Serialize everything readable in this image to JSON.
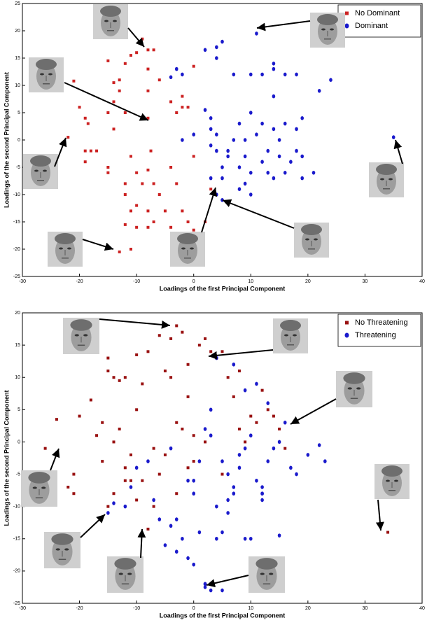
{
  "chart_data": [
    {
      "type": "scatter",
      "x_label": "Loadings of the first Principal Component",
      "y_label": "Loadings of the second Principal Component",
      "xlim": [
        -30,
        40
      ],
      "xticks": [
        -30,
        -20,
        -10,
        0,
        10,
        20,
        30,
        40
      ],
      "ylim": [
        -25,
        25
      ],
      "yticks": [
        -25,
        -20,
        -15,
        -10,
        -5,
        0,
        5,
        10,
        15,
        20,
        25
      ],
      "legend": "top-right",
      "series": [
        {
          "name": "No Dominant",
          "color": "#cc2222",
          "marker": "square",
          "x": [
            -21,
            -20,
            -19,
            -18.5,
            -19,
            -18,
            -17,
            -19,
            -15,
            -14,
            -13,
            -14,
            -15,
            -13,
            -12,
            -12,
            -11,
            -10,
            -9,
            -8,
            -7,
            -8,
            -6,
            -8,
            -8,
            -7.5,
            -8,
            -15,
            -15,
            -11,
            -10,
            -12,
            -12,
            -11,
            -12,
            -10,
            -10,
            -8,
            -7,
            -6,
            -5,
            -3,
            -2,
            -1,
            0,
            -4,
            -3,
            -2,
            -1,
            -4,
            -2,
            0,
            -7,
            -14,
            -13,
            2,
            3,
            -9,
            -4,
            -8,
            0,
            -11,
            -22
          ],
          "values": [
            10.8,
            6,
            4,
            3,
            -2,
            -2,
            -2,
            -4,
            14.5,
            10.5,
            11,
            7,
            5,
            9,
            5,
            14,
            15.5,
            16,
            18.5,
            16.5,
            16.5,
            13,
            11,
            9,
            4,
            -2,
            -5.5,
            -5,
            -6,
            -3,
            -6,
            -8,
            -10,
            -13,
            -15.5,
            -16,
            -12,
            -13,
            -15,
            -10,
            -13,
            -8,
            -13,
            -15,
            -16.5,
            -16,
            5,
            6,
            6,
            7,
            8,
            13.5,
            -8,
            2,
            -20.5,
            -15,
            -9,
            -8,
            -5,
            -16,
            -3,
            -20,
            0.5
          ]
        },
        {
          "name": "Dominant",
          "color": "#1a1acc",
          "marker": "circle",
          "x": [
            -4,
            -3,
            -2,
            2,
            4,
            4,
            5,
            7,
            10,
            12,
            14,
            14,
            11,
            16,
            18,
            22,
            24,
            0,
            2,
            3,
            3,
            4,
            3,
            4,
            6,
            5,
            5,
            3,
            4,
            5,
            8,
            9,
            10,
            9,
            8,
            10,
            12,
            13,
            13,
            14,
            15,
            15,
            16,
            17,
            18,
            19,
            19,
            21,
            11,
            12,
            14,
            16,
            18,
            19,
            8,
            9,
            10,
            14,
            -2,
            6,
            7,
            35
          ],
          "values": [
            11.5,
            13,
            12,
            16.5,
            17,
            15,
            18,
            12,
            12,
            12,
            13,
            14,
            19.5,
            12,
            12,
            9,
            11,
            1,
            5.5,
            4,
            2,
            1,
            -1,
            -2,
            -3,
            -5,
            -7,
            -7,
            -10,
            -11,
            -5,
            -3,
            -6,
            -8,
            -9,
            -10,
            -4,
            -2,
            -6,
            -7,
            0,
            -3,
            -6,
            -4,
            -2,
            -3,
            -7,
            -6,
            1,
            3,
            2,
            3,
            2,
            4,
            3,
            0,
            5,
            8,
            0,
            -2,
            0,
            0.5
          ]
        }
      ]
    },
    {
      "type": "scatter",
      "x_label": "Loadings of the first Principal Component",
      "y_label": "Loadings of the second Principal Component",
      "xlim": [
        -30,
        40
      ],
      "xticks": [
        -30,
        -20,
        -10,
        0,
        10,
        20,
        30,
        40
      ],
      "ylim": [
        -25,
        20
      ],
      "yticks": [
        -25,
        -20,
        -15,
        -10,
        -5,
        0,
        5,
        10,
        15,
        20
      ],
      "legend": "top-right",
      "series": [
        {
          "name": "No Threatening",
          "color": "#991111",
          "marker": "square",
          "x": [
            -24,
            -26,
            -22,
            -21,
            -21,
            -20,
            -18,
            -17,
            -16,
            -15,
            -15,
            -14,
            -13,
            -12,
            -14,
            -16,
            -13,
            -12,
            -11,
            -10,
            -10,
            -9,
            -8,
            -7,
            -6,
            -5,
            -4,
            -4,
            -3,
            -2,
            -1,
            0,
            1,
            2,
            3,
            4,
            5,
            6,
            7,
            8,
            8,
            9,
            10,
            11,
            12,
            13,
            14,
            15,
            16,
            -6,
            -5,
            -3,
            -1,
            -8,
            -10,
            -14,
            -15,
            -11,
            -3,
            0,
            2,
            5,
            -9,
            -7,
            -1,
            -2,
            -12,
            34
          ],
          "values": [
            3.5,
            -1,
            -7,
            -8,
            -5,
            4,
            6.5,
            1,
            3,
            13,
            11,
            10,
            9.5,
            10,
            0,
            -3,
            2,
            -4,
            -2,
            -9,
            13.5,
            9,
            -13.5,
            -10,
            -5,
            -2,
            16,
            10,
            18,
            17,
            12,
            1,
            15,
            16,
            14,
            13,
            14,
            10,
            7,
            11,
            2,
            0,
            4,
            3,
            8,
            5,
            4,
            2,
            -1,
            16.5,
            11,
            3,
            7,
            14,
            5,
            -8,
            -10,
            -6,
            -8,
            -3,
            0,
            -5,
            -6,
            -1,
            -4,
            2,
            -6,
            -14
          ]
        },
        {
          "name": "Threatening",
          "color": "#1a1acc",
          "marker": "circle",
          "x": [
            -15,
            -14,
            -12,
            -11,
            -10,
            -8,
            -7,
            -6,
            -5,
            -4,
            -3,
            -2,
            -1,
            0,
            1,
            2,
            3,
            4,
            5,
            6,
            7,
            8,
            9,
            10,
            11,
            12,
            13,
            14,
            15,
            16,
            17,
            18,
            20,
            22,
            23,
            -4,
            -1,
            0,
            2,
            3,
            4,
            5,
            6,
            7,
            8,
            9,
            10,
            12,
            12,
            2,
            3,
            4,
            7,
            9,
            11,
            13,
            2,
            5,
            6,
            -3,
            0,
            1,
            12,
            15
          ],
          "values": [
            -11,
            -9.5,
            -10,
            -7,
            -4,
            -3,
            -9,
            -12,
            -16,
            -13,
            -17,
            -15,
            -18,
            -19,
            -14,
            -22,
            -23,
            -15,
            -14,
            -9,
            -7,
            -4,
            -15,
            -15,
            -6,
            -8,
            -3,
            -1,
            0,
            3,
            -4,
            -5,
            -2,
            -0.5,
            -3,
            -1,
            -6,
            -8,
            2,
            1,
            -10,
            -3,
            -5,
            -8,
            -2,
            -1,
            1,
            -9,
            -8,
            -22,
            5,
            13,
            12,
            8,
            9,
            6,
            -22.5,
            -23,
            -11,
            -12,
            -6,
            -3,
            -7,
            -14.5
          ]
        }
      ]
    }
  ]
}
